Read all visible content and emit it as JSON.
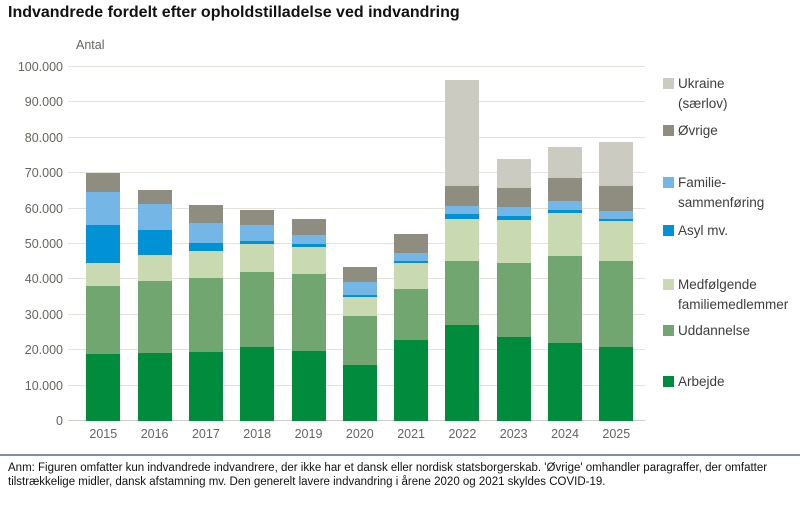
{
  "footnote": "Anm: Figuren omfatter kun indvandrede indvandrere, der ikke har et dansk eller nordisk statsborgerskab. 'Øvrige' omhandler paragraffer, der omfatter tilstrækkelige midler, dansk afstamning mv. Den generelt lavere indvandring i årene 2020 og 2021 skyldes COVID-19.",
  "chart_data": {
    "type": "bar",
    "stacked": true,
    "title": "Indvandrede fordelt efter opholdstilladelse ved indvandring",
    "xlabel": "",
    "ylabel": "Antal",
    "ylim": [
      0,
      100000
    ],
    "ytick_step": 10000,
    "ytick_labels": [
      "0",
      "10.000",
      "20.000",
      "30.000",
      "40.000",
      "50.000",
      "60.000",
      "70.000",
      "80.000",
      "90.000",
      "100.000"
    ],
    "grid": true,
    "legend_position": "right",
    "categories": [
      "2015",
      "2016",
      "2017",
      "2018",
      "2019",
      "2020",
      "2021",
      "2022",
      "2023",
      "2024",
      "2025"
    ],
    "series": [
      {
        "name": "Arbejde",
        "color": "#008b3d",
        "values": [
          19000,
          19200,
          19600,
          20800,
          19900,
          15700,
          22900,
          27100,
          23600,
          22100,
          20900
        ]
      },
      {
        "name": "Uddannelse",
        "color": "#72a671",
        "values": [
          19100,
          20400,
          20800,
          21400,
          21500,
          14100,
          14300,
          18000,
          21100,
          24500,
          24300
        ]
      },
      {
        "name": "Medfølgende familiemedlemmer",
        "color": "#c9dab3",
        "values": [
          6500,
          7400,
          7700,
          7700,
          7700,
          5200,
          7400,
          11900,
          12100,
          12200,
          11200
        ]
      },
      {
        "name": "Asyl mv.",
        "color": "#0092d4",
        "values": [
          10800,
          7000,
          2200,
          1000,
          1000,
          700,
          600,
          1500,
          1100,
          800,
          600
        ]
      },
      {
        "name": "Familiesammenføring",
        "color": "#74b7e6",
        "values": [
          9300,
          7300,
          5700,
          4400,
          2400,
          3600,
          2400,
          2300,
          2500,
          2700,
          2400
        ]
      },
      {
        "name": "Øvrige",
        "color": "#8f8d7f",
        "values": [
          5300,
          4100,
          5100,
          4400,
          4700,
          4100,
          5300,
          5500,
          5400,
          6400,
          6900
        ]
      },
      {
        "name": "Ukraine (særlov)",
        "color": "#cbcbc2",
        "values": [
          0,
          0,
          0,
          0,
          0,
          0,
          0,
          30000,
          8200,
          8600,
          12600
        ]
      }
    ],
    "legend": [
      {
        "series": "Ukraine (særlov)",
        "lines": [
          "Ukraine",
          "(særlov)"
        ],
        "color": "#cbcbc2"
      },
      {
        "series": "Øvrige",
        "lines": [
          "Øvrige"
        ],
        "color": "#8f8d7f"
      },
      {
        "series": "Familiesammenføring",
        "lines": [
          "Familie-",
          "sammenføring"
        ],
        "color": "#74b7e6"
      },
      {
        "series": "Asyl mv.",
        "lines": [
          "Asyl mv."
        ],
        "color": "#0092d4"
      },
      {
        "series": "Medfølgende familiemedlemmer",
        "lines": [
          "Medfølgende",
          "familiemedlemmer"
        ],
        "color": "#c9dab3"
      },
      {
        "series": "Uddannelse",
        "lines": [
          "Uddannelse"
        ],
        "color": "#72a671"
      },
      {
        "series": "Arbejde",
        "lines": [
          "Arbejde"
        ],
        "color": "#008b3d"
      }
    ]
  }
}
